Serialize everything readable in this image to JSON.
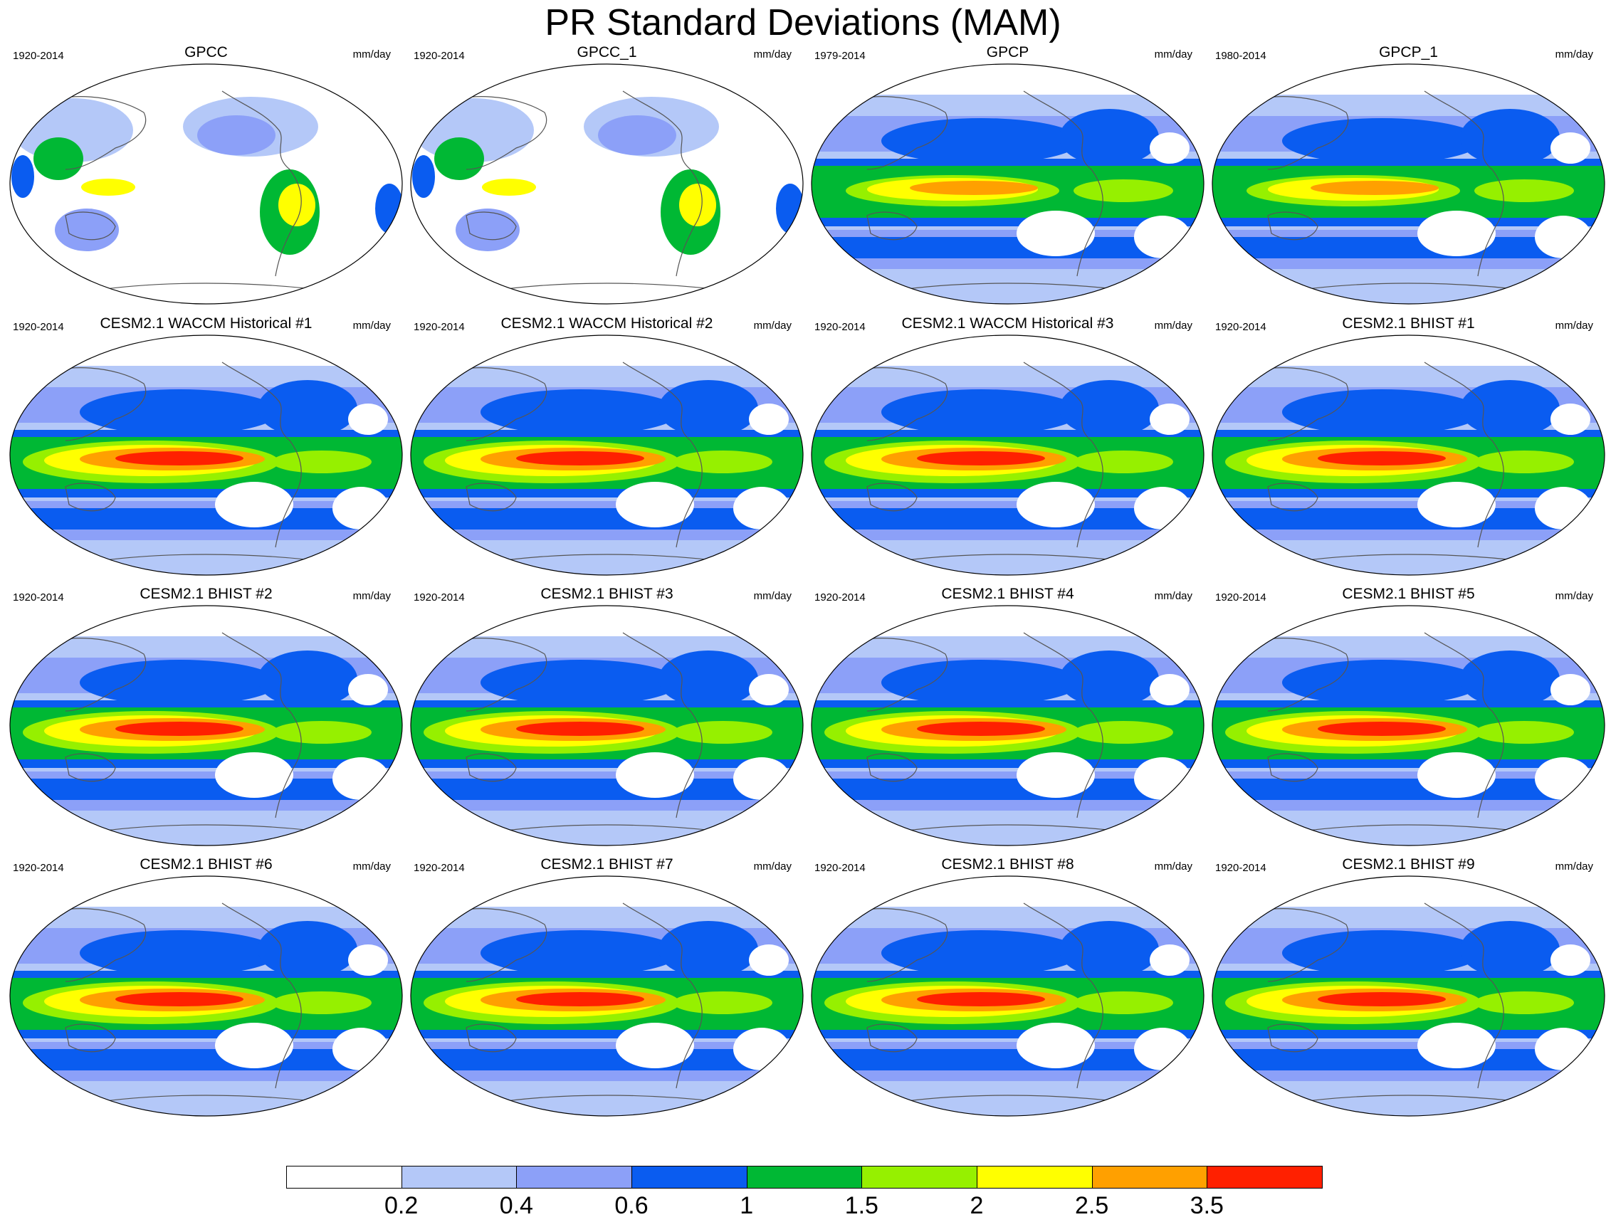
{
  "title": "PR Standard Deviations (MAM)",
  "panels": [
    {
      "title": "GPCC",
      "period": "1920-2014",
      "units": "mm/day",
      "kind": "land"
    },
    {
      "title": "GPCC_1",
      "period": "1920-2014",
      "units": "mm/day",
      "kind": "land"
    },
    {
      "title": "GPCP",
      "period": "1979-2014",
      "units": "mm/day",
      "kind": "obs"
    },
    {
      "title": "GPCP_1",
      "period": "1980-2014",
      "units": "mm/day",
      "kind": "obs"
    },
    {
      "title": "CESM2.1 WACCM Historical #1",
      "period": "1920-2014",
      "units": "mm/day",
      "kind": "model"
    },
    {
      "title": "CESM2.1 WACCM Historical #2",
      "period": "1920-2014",
      "units": "mm/day",
      "kind": "model"
    },
    {
      "title": "CESM2.1 WACCM Historical #3",
      "period": "1920-2014",
      "units": "mm/day",
      "kind": "model"
    },
    {
      "title": "CESM2.1 BHIST #1",
      "period": "1920-2014",
      "units": "mm/day",
      "kind": "model"
    },
    {
      "title": "CESM2.1 BHIST #2",
      "period": "1920-2014",
      "units": "mm/day",
      "kind": "model"
    },
    {
      "title": "CESM2.1 BHIST #3",
      "period": "1920-2014",
      "units": "mm/day",
      "kind": "model"
    },
    {
      "title": "CESM2.1 BHIST #4",
      "period": "1920-2014",
      "units": "mm/day",
      "kind": "model"
    },
    {
      "title": "CESM2.1 BHIST #5",
      "period": "1920-2014",
      "units": "mm/day",
      "kind": "model"
    },
    {
      "title": "CESM2.1 BHIST #6",
      "period": "1920-2014",
      "units": "mm/day",
      "kind": "model"
    },
    {
      "title": "CESM2.1 BHIST #7",
      "period": "1920-2014",
      "units": "mm/day",
      "kind": "model"
    },
    {
      "title": "CESM2.1 BHIST #8",
      "period": "1920-2014",
      "units": "mm/day",
      "kind": "model"
    },
    {
      "title": "CESM2.1 BHIST #9",
      "period": "1920-2014",
      "units": "mm/day",
      "kind": "model"
    }
  ],
  "colorbar": {
    "labels": [
      "0.2",
      "0.4",
      "0.6",
      "1",
      "1.5",
      "2",
      "2.5",
      "3.5"
    ],
    "colors": [
      "#ffffff",
      "#b4c8f8",
      "#8ca0f8",
      "#0a5cf0",
      "#00b834",
      "#96f000",
      "#ffff00",
      "#ffa000",
      "#ff2000"
    ]
  }
}
